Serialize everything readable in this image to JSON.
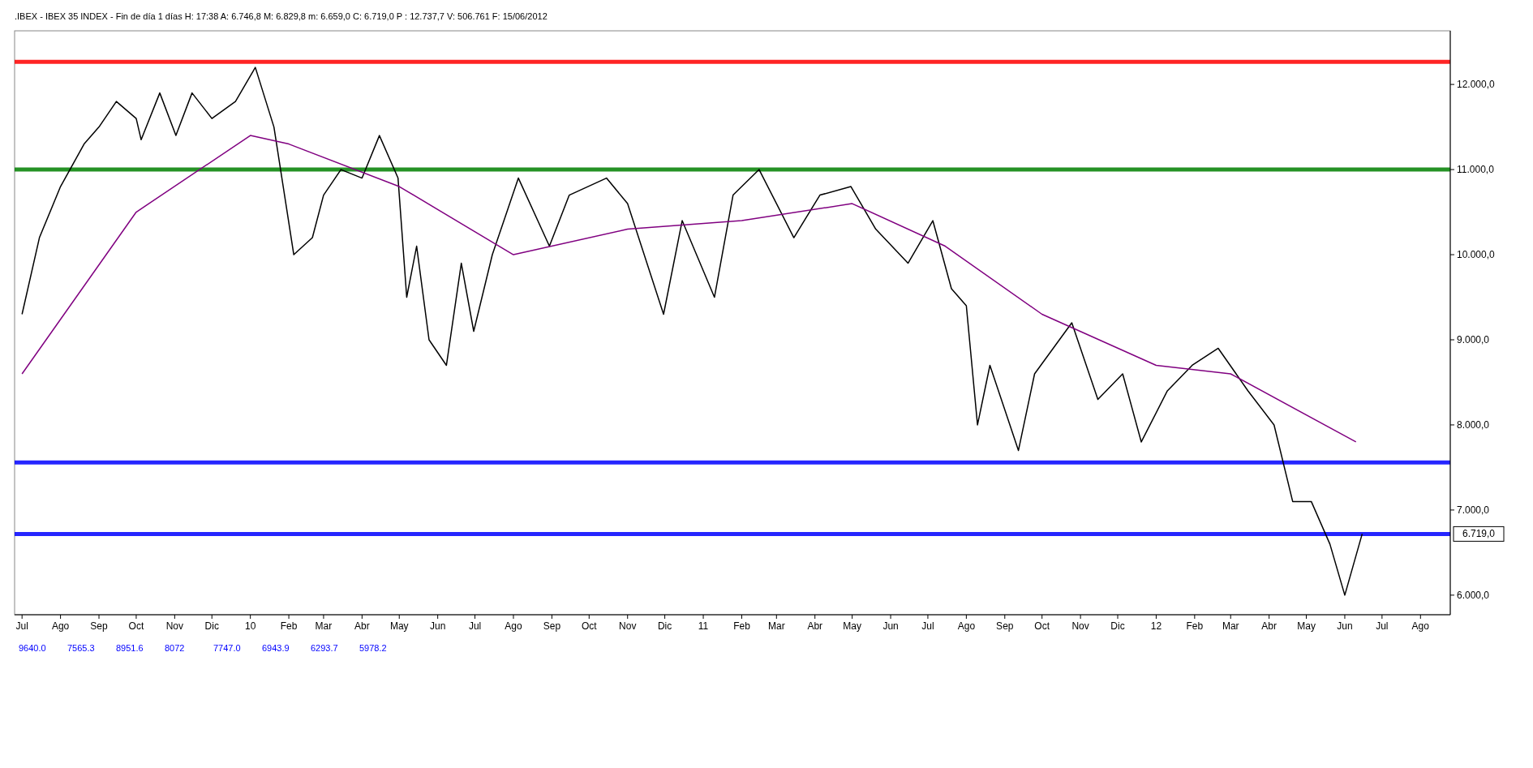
{
  "chart_data": {
    "type": "line",
    "title": ".IBEX - IBEX 35 INDEX - Fin de día 1 días H: 17:38 A: 6.746,8 M: 6.829,8 m: 6.659,0 C: 6.719,0 P : 12.737,7 V: 506.761 F: 15/06/2012",
    "xlim": [
      "2009-06-25",
      "2012-08-25"
    ],
    "ylim": [
      5770,
      12630
    ],
    "yticks": [
      {
        "value": 6000,
        "label": "6.000,0"
      },
      {
        "value": 7000,
        "label": "7.000,0"
      },
      {
        "value": 8000,
        "label": "8.000,0"
      },
      {
        "value": 9000,
        "label": "9.000,0"
      },
      {
        "value": 10000,
        "label": "10.000,0"
      },
      {
        "value": 11000,
        "label": "11.000,0"
      },
      {
        "value": 12000,
        "label": "12.000,0"
      }
    ],
    "xticks": [
      {
        "value": "2009-07-01",
        "label": "Jul"
      },
      {
        "value": "2009-08-01",
        "label": "Ago"
      },
      {
        "value": "2009-09-01",
        "label": "Sep"
      },
      {
        "value": "2009-10-01",
        "label": "Oct"
      },
      {
        "value": "2009-11-01",
        "label": "Nov"
      },
      {
        "value": "2009-12-01",
        "label": "Dic"
      },
      {
        "value": "2010-01-01",
        "label": "10"
      },
      {
        "value": "2010-02-01",
        "label": "Feb"
      },
      {
        "value": "2010-03-01",
        "label": "Mar"
      },
      {
        "value": "2010-04-01",
        "label": "Abr"
      },
      {
        "value": "2010-05-01",
        "label": "May"
      },
      {
        "value": "2010-06-01",
        "label": "Jun"
      },
      {
        "value": "2010-07-01",
        "label": "Jul"
      },
      {
        "value": "2010-08-01",
        "label": "Ago"
      },
      {
        "value": "2010-09-01",
        "label": "Sep"
      },
      {
        "value": "2010-10-01",
        "label": "Oct"
      },
      {
        "value": "2010-11-01",
        "label": "Nov"
      },
      {
        "value": "2010-12-01",
        "label": "Dic"
      },
      {
        "value": "2011-01-01",
        "label": "11"
      },
      {
        "value": "2011-02-01",
        "label": "Feb"
      },
      {
        "value": "2011-03-01",
        "label": "Mar"
      },
      {
        "value": "2011-04-01",
        "label": "Abr"
      },
      {
        "value": "2011-05-01",
        "label": "May"
      },
      {
        "value": "2011-06-01",
        "label": "Jun"
      },
      {
        "value": "2011-07-01",
        "label": "Jul"
      },
      {
        "value": "2011-08-01",
        "label": "Ago"
      },
      {
        "value": "2011-09-01",
        "label": "Sep"
      },
      {
        "value": "2011-10-01",
        "label": "Oct"
      },
      {
        "value": "2011-11-01",
        "label": "Nov"
      },
      {
        "value": "2011-12-01",
        "label": "Dic"
      },
      {
        "value": "2012-01-01",
        "label": "12"
      },
      {
        "value": "2012-02-01",
        "label": "Feb"
      },
      {
        "value": "2012-03-01",
        "label": "Mar"
      },
      {
        "value": "2012-04-01",
        "label": "Abr"
      },
      {
        "value": "2012-05-01",
        "label": "May"
      },
      {
        "value": "2012-06-01",
        "label": "Jun"
      },
      {
        "value": "2012-07-01",
        "label": "Jul"
      },
      {
        "value": "2012-08-01",
        "label": "Ago"
      }
    ],
    "grid": false,
    "series": [
      {
        "color": "#000000",
        "x": [
          "2009-07-01",
          "2009-07-15",
          "2009-08-01",
          "2009-08-20",
          "2009-09-01",
          "2009-09-15",
          "2009-10-01",
          "2009-10-05",
          "2009-10-20",
          "2009-11-02",
          "2009-11-15",
          "2009-12-01",
          "2009-12-20",
          "2010-01-05",
          "2010-01-20",
          "2010-02-05",
          "2010-02-20",
          "2010-03-01",
          "2010-03-15",
          "2010-04-01",
          "2010-04-15",
          "2010-04-30",
          "2010-05-07",
          "2010-05-15",
          "2010-05-25",
          "2010-06-08",
          "2010-06-20",
          "2010-06-30",
          "2010-07-15",
          "2010-08-05",
          "2010-08-30",
          "2010-09-15",
          "2010-10-15",
          "2010-11-01",
          "2010-11-30",
          "2010-12-15",
          "2011-01-10",
          "2011-01-25",
          "2011-02-15",
          "2011-03-15",
          "2011-04-05",
          "2011-04-30",
          "2011-05-20",
          "2011-06-15",
          "2011-07-05",
          "2011-07-20",
          "2011-08-01",
          "2011-08-10",
          "2011-08-20",
          "2011-09-12",
          "2011-09-25",
          "2011-10-25",
          "2011-11-15",
          "2011-12-05",
          "2011-12-20",
          "2012-01-10",
          "2012-01-30",
          "2012-02-20",
          "2012-03-15",
          "2012-04-05",
          "2012-04-20",
          "2012-05-05",
          "2012-05-20",
          "2012-06-01",
          "2012-06-15"
        ],
        "values": [
          9300,
          10200,
          10800,
          11300,
          11500,
          11800,
          11600,
          11350,
          11900,
          11400,
          11900,
          11600,
          11800,
          12200,
          11500,
          10000,
          10200,
          10700,
          11000,
          10900,
          11400,
          10900,
          9500,
          10100,
          9000,
          8700,
          9900,
          9100,
          10000,
          10900,
          10100,
          10700,
          10900,
          10600,
          9300,
          10400,
          9500,
          10700,
          11000,
          10200,
          10700,
          10800,
          10300,
          9900,
          10400,
          9600,
          9400,
          8000,
          8700,
          7700,
          8600,
          9200,
          8300,
          8600,
          7800,
          8400,
          8700,
          8900,
          8400,
          8000,
          7100,
          7100,
          6600,
          6000,
          6719
        ]
      },
      {
        "color": "#800080",
        "x": [
          "2009-07-01",
          "2009-10-01",
          "2010-01-01",
          "2010-02-01",
          "2010-05-01",
          "2010-08-01",
          "2010-11-01",
          "2011-02-01",
          "2011-05-01",
          "2011-07-15",
          "2011-10-01",
          "2012-01-01",
          "2012-03-01",
          "2012-06-10"
        ],
        "values": [
          8600,
          10500,
          11400,
          11300,
          10800,
          10000,
          10300,
          10400,
          10600,
          10100,
          9300,
          8700,
          8600,
          7800
        ]
      }
    ],
    "ref_lines": [
      {
        "axis": "y",
        "value": 12265,
        "color": "#ff0000"
      },
      {
        "axis": "y",
        "value": 11000,
        "color": "#008000"
      },
      {
        "axis": "y",
        "value": 7560,
        "color": "#0000ff"
      },
      {
        "axis": "y",
        "value": 6719,
        "label": "6.719,0",
        "color": "#0000ff"
      }
    ],
    "annotations": [
      "9640.0",
      "7565.3",
      "8951.6",
      "8072",
      "7747.0",
      "6943.9",
      "6293.7",
      "5978.2"
    ]
  }
}
